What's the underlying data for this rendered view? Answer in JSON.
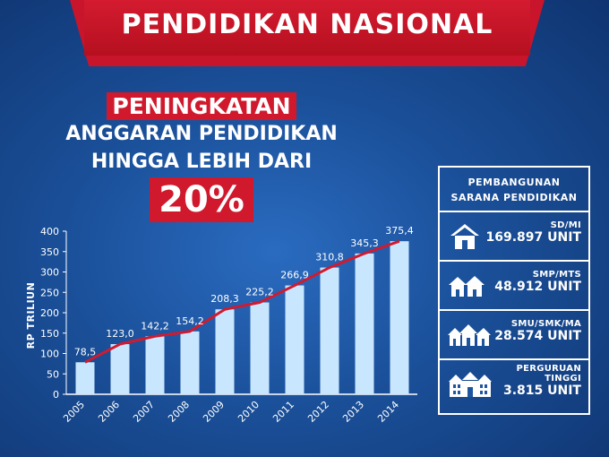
{
  "banner": {
    "title": "PENDIDIKAN NASIONAL"
  },
  "headline": {
    "line1": "PENINGKATAN",
    "line2": "ANGGARAN PENDIDIKAN",
    "line3": "HINGGA LEBIH DARI",
    "line4": "20%"
  },
  "panel": {
    "title_line1": "PEMBANGUNAN",
    "title_line2": "SARANA PENDIDIKAN",
    "items": [
      {
        "label": "SD/MI",
        "value": "169.897 UNIT",
        "icon": "house-icon"
      },
      {
        "label": "SMP/MTS",
        "value": "48.912 UNIT",
        "icon": "two-houses-icon"
      },
      {
        "label": "SMU/SMK/MA",
        "value": "28.574 UNIT",
        "icon": "three-houses-icon"
      },
      {
        "label_line1": "PERGURUAN",
        "label_line2": "TINGGI",
        "value": "3.815 UNIT",
        "icon": "university-building-icon"
      }
    ]
  },
  "chart_data": {
    "type": "bar",
    "ylabel": "RP TRILIUN",
    "xlabel": "",
    "categories": [
      "2005",
      "2006",
      "2007",
      "2008",
      "2009",
      "2010",
      "2011",
      "2012",
      "2013",
      "2014"
    ],
    "values": [
      78.5,
      123.0,
      142.2,
      154.2,
      208.3,
      225.2,
      266.9,
      310.8,
      345.3,
      375.4
    ],
    "value_labels": [
      "78,5",
      "123,0",
      "142,2",
      "154,2",
      "208,3",
      "225,2",
      "266,9",
      "310,8",
      "345,3",
      "375,4"
    ],
    "ylim": [
      0,
      400
    ],
    "yticks": [
      0,
      50,
      100,
      150,
      200,
      250,
      300,
      350,
      400
    ],
    "overlay_line": true,
    "colors": {
      "bar": "#c9e6ff",
      "line": "#d21a2e"
    },
    "grid": false
  }
}
